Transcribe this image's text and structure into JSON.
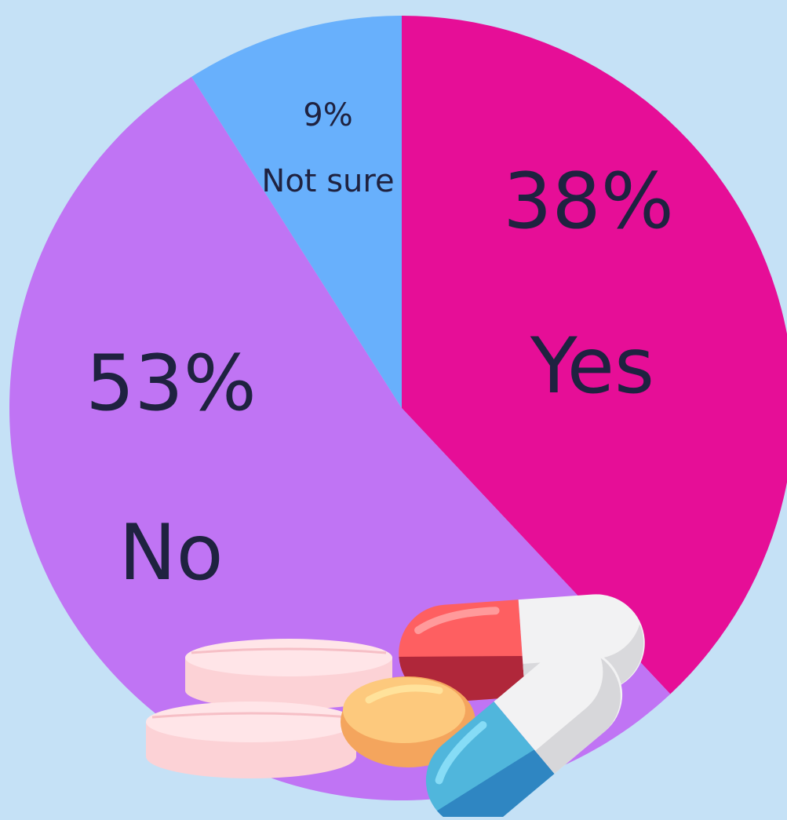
{
  "chart_data": {
    "type": "pie",
    "title": "",
    "start_angle_deg": 0,
    "direction": "clockwise",
    "slices": [
      {
        "pct_label": "38%",
        "label": "Yes",
        "value": 38,
        "color": "#e60e97"
      },
      {
        "pct_label": "53%",
        "label": "No",
        "value": 53,
        "color": "#c074f4"
      },
      {
        "pct_label": "9%",
        "label": "Not sure",
        "value": 9,
        "color": "#68b0fc"
      }
    ]
  },
  "colors": {
    "background": "#c5e1f6",
    "text": "#1f2240"
  },
  "illustration": {
    "icon": "pills-icon"
  }
}
